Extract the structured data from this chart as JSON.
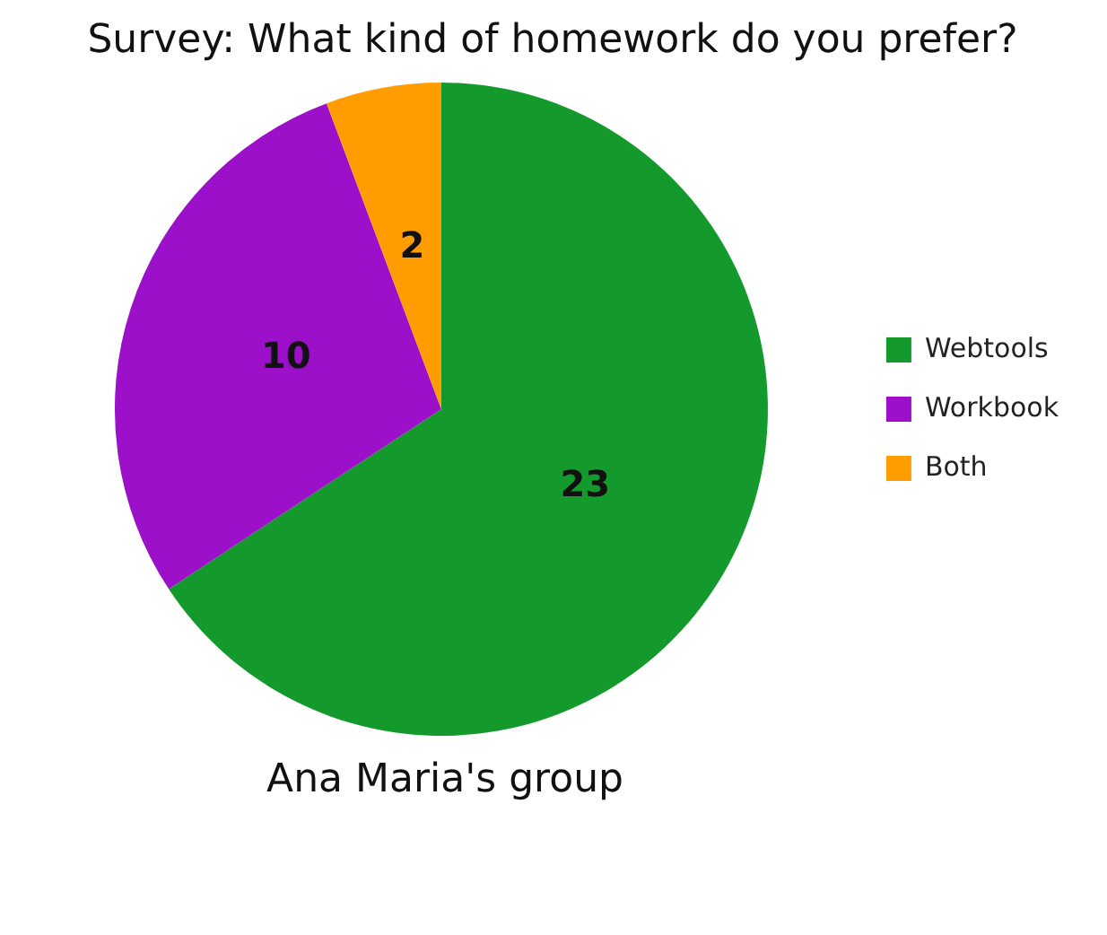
{
  "chart_data": {
    "type": "pie",
    "title": "Survey: What kind of homework do you prefer?",
    "xlabel": "Ana Maria's group",
    "categories": [
      "Webtools",
      "Workbook",
      "Both"
    ],
    "values": [
      23,
      10,
      2
    ],
    "colors": [
      "#149a2c",
      "#9b10c8",
      "#ff9c00"
    ],
    "data_labels": true,
    "legend": "right"
  }
}
